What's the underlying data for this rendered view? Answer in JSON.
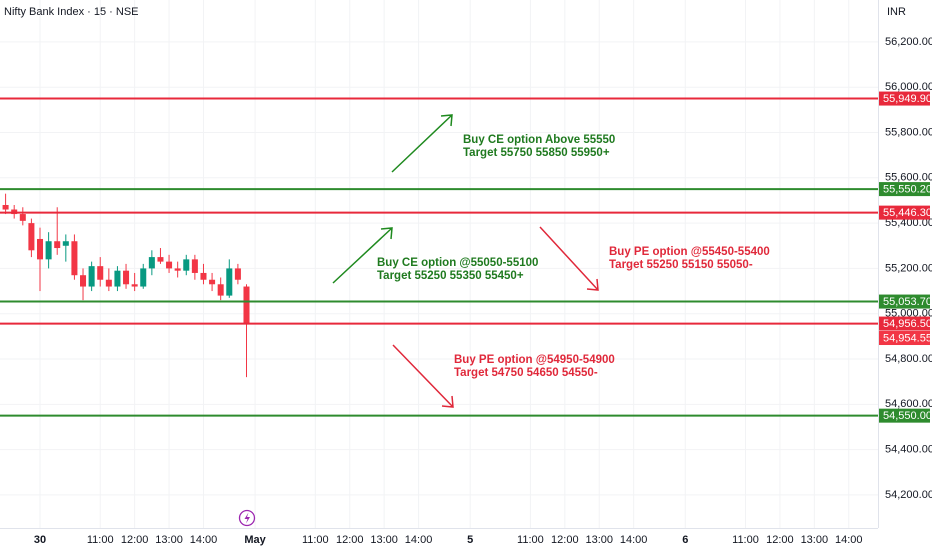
{
  "chart_data": {
    "type": "candlestick",
    "title": "Nifty Bank Index · 15 · NSE",
    "currency": "INR",
    "x": [
      -4,
      -3,
      -2,
      -1,
      0,
      1,
      2,
      3,
      4,
      5,
      6,
      7,
      8,
      9,
      10,
      11,
      12,
      13,
      14,
      15,
      16,
      17,
      18,
      19,
      20,
      21,
      22,
      23,
      24
    ],
    "open": [
      55480,
      55460,
      55440,
      55400,
      55330,
      55240,
      55320,
      55300,
      55320,
      55170,
      55120,
      55210,
      55150,
      55120,
      55190,
      55130,
      55120,
      55200,
      55250,
      55230,
      55200,
      55190,
      55240,
      55180,
      55150,
      55130,
      55080,
      55200,
      55120
    ],
    "high": [
      55530,
      55480,
      55470,
      55420,
      55380,
      55360,
      55470,
      55350,
      55350,
      55200,
      55230,
      55250,
      55200,
      55210,
      55220,
      55180,
      55220,
      55280,
      55290,
      55260,
      55230,
      55260,
      55260,
      55220,
      55180,
      55160,
      55240,
      55220,
      55130
    ],
    "low": [
      55440,
      55420,
      55390,
      55250,
      55100,
      55200,
      55260,
      55230,
      55150,
      55060,
      55100,
      55120,
      55100,
      55100,
      55110,
      55100,
      55110,
      55170,
      55220,
      55180,
      55160,
      55170,
      55150,
      55130,
      55100,
      55060,
      55070,
      55130,
      54720
    ],
    "close": [
      55460,
      55440,
      55410,
      55280,
      55240,
      55320,
      55290,
      55320,
      55170,
      55120,
      55210,
      55150,
      55120,
      55190,
      55130,
      55120,
      55200,
      55250,
      55230,
      55200,
      55190,
      55240,
      55180,
      55150,
      55130,
      55080,
      55200,
      55150,
      54954.55
    ],
    "last_label": "54,954.55",
    "up_color": "#089981",
    "down_color": "#f23645",
    "xlim": [
      -4.65,
      97.4
    ],
    "ylim": [
      54054,
      56385
    ],
    "xticks": [
      {
        "value": 0,
        "label": "30"
      },
      {
        "value": 7,
        "label": "11:00"
      },
      {
        "value": 11,
        "label": "12:00"
      },
      {
        "value": 15,
        "label": "13:00"
      },
      {
        "value": 19,
        "label": "14:00"
      },
      {
        "value": 25,
        "label": "May"
      },
      {
        "value": 32,
        "label": "11:00"
      },
      {
        "value": 36,
        "label": "12:00"
      },
      {
        "value": 40,
        "label": "13:00"
      },
      {
        "value": 44,
        "label": "14:00"
      },
      {
        "value": 50,
        "label": "5"
      },
      {
        "value": 57,
        "label": "11:00"
      },
      {
        "value": 61,
        "label": "12:00"
      },
      {
        "value": 65,
        "label": "13:00"
      },
      {
        "value": 69,
        "label": "14:00"
      },
      {
        "value": 75,
        "label": "6"
      },
      {
        "value": 82,
        "label": "11:00"
      },
      {
        "value": 86,
        "label": "12:00"
      },
      {
        "value": 90,
        "label": "13:00"
      },
      {
        "value": 94,
        "label": "14:00"
      }
    ],
    "yticks": [
      {
        "value": 54200,
        "label": "54,200.00"
      },
      {
        "value": 54400,
        "label": "54,400.00"
      },
      {
        "value": 54600,
        "label": "54,600.00"
      },
      {
        "value": 54800,
        "label": "54,800.00"
      },
      {
        "value": 55000,
        "label": "55,000.00"
      },
      {
        "value": 55200,
        "label": "55,200.00"
      },
      {
        "value": 55400,
        "label": "55,400.00"
      },
      {
        "value": 55600,
        "label": "55,600.00"
      },
      {
        "value": 55800,
        "label": "55,800.00"
      },
      {
        "value": 56000,
        "label": "56,000.00"
      },
      {
        "value": 56200,
        "label": "56,200.00"
      }
    ],
    "grid": true,
    "levels": [
      {
        "value": 55949.9,
        "label": "55,949.90",
        "color": "#e8293b"
      },
      {
        "value": 55550.2,
        "label": "55,550.20",
        "color": "#2e8b2e"
      },
      {
        "value": 55446.3,
        "label": "55,446.30",
        "color": "#e8293b"
      },
      {
        "value": 55053.7,
        "label": "55,053.70",
        "color": "#2e8b2e"
      },
      {
        "value": 54956.5,
        "label": "54,956.50",
        "color": "#e8293b"
      },
      {
        "value": 54550,
        "label": "54,550.00",
        "color": "#2e8b2e"
      }
    ],
    "annotations": [
      {
        "lines": [
          "Buy CE option Above 55550",
          "Target 55750 55850 55950+"
        ],
        "color": "#1f7a1f"
      },
      {
        "lines": [
          "Buy CE option @55050-55100",
          "Target 55250 55350 55450+"
        ],
        "color": "#1f7a1f"
      },
      {
        "lines": [
          "Buy PE option @55450-55400",
          "Target 55250 55150 55050-"
        ],
        "color": "#e0283a"
      },
      {
        "lines": [
          "Buy PE option @54950-54900",
          "Target 54750 54650 54550-"
        ],
        "color": "#e0283a"
      }
    ]
  }
}
